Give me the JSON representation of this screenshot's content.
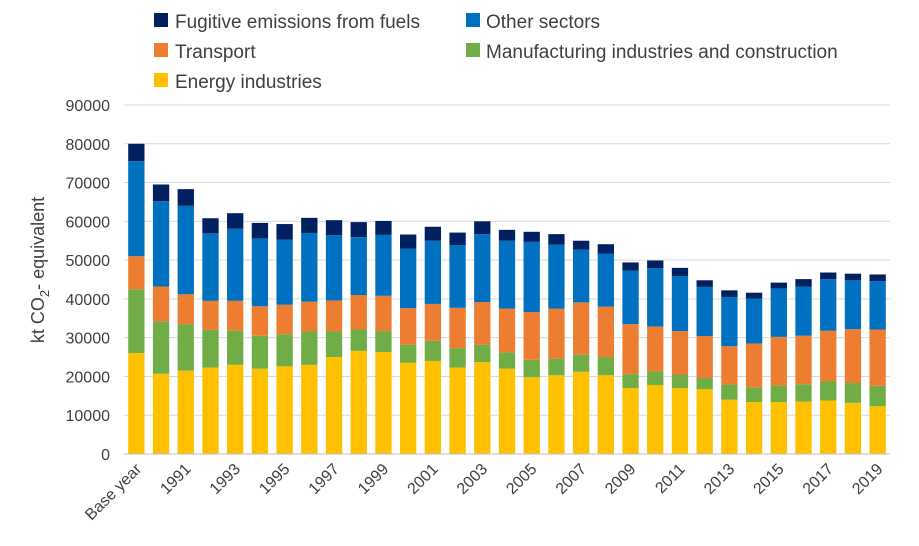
{
  "chart_data": {
    "type": "bar",
    "stacked": true,
    "ylabel_main": "kt CO",
    "ylabel_sub": "2",
    "ylabel_rest": "- equivalent",
    "ylim": [
      0,
      90000
    ],
    "yticks": [
      "0",
      "10000",
      "20000",
      "30000",
      "40000",
      "50000",
      "60000",
      "70000",
      "80000",
      "90000"
    ],
    "grid": true,
    "legend_position": "top",
    "categories": [
      "Base year",
      "1990",
      "1991",
      "1992",
      "1993",
      "1994",
      "1995",
      "1996",
      "1997",
      "1998",
      "1999",
      "2000",
      "2001",
      "2002",
      "2003",
      "2004",
      "2005",
      "2006",
      "2007",
      "2008",
      "2009",
      "2010",
      "2011",
      "2012",
      "2013",
      "2014",
      "2015",
      "2016",
      "2017",
      "2018",
      "2019"
    ],
    "tick_labels": [
      "Base year",
      "1991",
      "1993",
      "1995",
      "1997",
      "1999",
      "2001",
      "2003",
      "2005",
      "2007",
      "2009",
      "2011",
      "2013",
      "2015",
      "2017",
      "2019"
    ],
    "tick_category_index": [
      0,
      2,
      4,
      6,
      8,
      10,
      12,
      14,
      16,
      18,
      20,
      22,
      24,
      26,
      28,
      30
    ],
    "series": [
      {
        "name": "Energy industries",
        "color": "#FFC000",
        "values": [
          26000,
          20700,
          21500,
          22300,
          23000,
          22000,
          22600,
          23000,
          25000,
          26600,
          26300,
          23500,
          24000,
          22300,
          23700,
          22000,
          19800,
          20300,
          21200,
          20300,
          17000,
          17800,
          17000,
          16700,
          14000,
          13400,
          13400,
          13500,
          13800,
          13200,
          12300
        ]
      },
      {
        "name": "Manufacturing industries and construction",
        "color": "#70AD47",
        "values": [
          16500,
          13500,
          12000,
          9700,
          8800,
          8500,
          8300,
          8600,
          6600,
          5500,
          5400,
          4700,
          5200,
          5000,
          4500,
          4200,
          4500,
          4300,
          4400,
          4700,
          3600,
          3500,
          3500,
          2900,
          3900,
          3800,
          4300,
          4500,
          4900,
          5100,
          5300
        ]
      },
      {
        "name": "Transport",
        "color": "#ED7D31",
        "values": [
          8500,
          9000,
          7700,
          7500,
          7700,
          7600,
          7600,
          7700,
          8000,
          8900,
          9100,
          9400,
          9500,
          10400,
          11000,
          11300,
          12300,
          12900,
          13500,
          13000,
          12900,
          11600,
          11200,
          10800,
          9900,
          11300,
          12500,
          12500,
          13100,
          13900,
          14500
        ]
      },
      {
        "name": "Other sectors",
        "color": "#0070C0",
        "values": [
          24500,
          22000,
          22800,
          17400,
          18600,
          17500,
          16800,
          17700,
          16800,
          14900,
          15700,
          15400,
          16300,
          16200,
          17500,
          17500,
          18100,
          16500,
          13600,
          13700,
          13800,
          15000,
          14200,
          12700,
          12700,
          11600,
          12500,
          12700,
          13300,
          12600,
          12500
        ]
      },
      {
        "name": "Fugitive emissions from fuels",
        "color": "#002060",
        "values": [
          4500,
          4300,
          4300,
          3900,
          4000,
          4000,
          4000,
          3900,
          3900,
          3900,
          3600,
          3600,
          3600,
          3200,
          3300,
          2800,
          2600,
          2700,
          2300,
          2400,
          2100,
          2000,
          2100,
          1700,
          1700,
          1500,
          1500,
          1900,
          1700,
          1700,
          1700
        ]
      }
    ],
    "legend": [
      {
        "label": "Fugitive emissions from fuels",
        "color": "#002060"
      },
      {
        "label": "Other sectors",
        "color": "#0070C0"
      },
      {
        "label": "Transport",
        "color": "#ED7D31"
      },
      {
        "label": "Manufacturing industries and construction",
        "color": "#70AD47"
      },
      {
        "label": "Energy industries",
        "color": "#FFC000"
      }
    ]
  }
}
